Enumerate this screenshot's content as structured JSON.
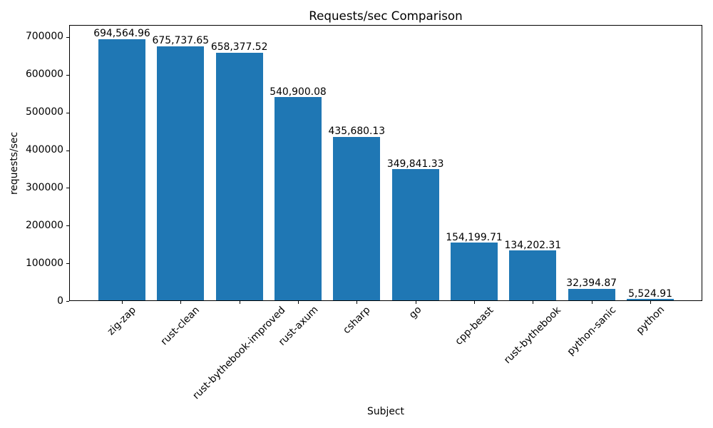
{
  "chart_data": {
    "type": "bar",
    "title": "Requests/sec Comparison",
    "xlabel": "Subject",
    "ylabel": "requests/sec",
    "categories": [
      "zig-zap",
      "rust-clean",
      "rust-bythebook-improved",
      "rust-axum",
      "csharp",
      "go",
      "cpp-beast",
      "rust-bythebook",
      "python-sanic",
      "python"
    ],
    "values": [
      694564.96,
      675737.65,
      658377.52,
      540900.08,
      435680.13,
      349841.33,
      154199.71,
      134202.31,
      32394.87,
      5524.91
    ],
    "value_labels": [
      "694,564.96",
      "675,737.65",
      "658,377.52",
      "540,900.08",
      "435,680.13",
      "349,841.33",
      "154,199.71",
      "134,202.31",
      "32,394.87",
      "5,524.91"
    ],
    "yticks": [
      0,
      100000,
      200000,
      300000,
      400000,
      500000,
      600000,
      700000
    ],
    "ylim": [
      0,
      732000
    ],
    "bar_color": "#1f77b4",
    "grid": false,
    "x_tick_rotation": 45,
    "legend": "none"
  }
}
